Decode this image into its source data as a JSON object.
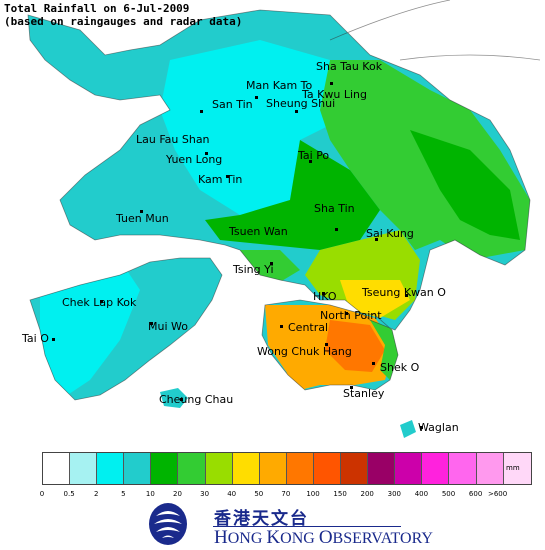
{
  "title": {
    "line1": "Total Rainfall on 6-Jul-2009",
    "line2": "(based on raingauges and radar data)"
  },
  "colors": {
    "sea": "#ffffff",
    "band_0_5_2": "#a6f2f2",
    "band_2_5": "#00f0f0",
    "band_5_10": "#22cccc",
    "band_10_20": "#00b400",
    "band_20_30": "#33cc33",
    "band_30_40": "#99dd00",
    "band_40_50": "#ffdd00",
    "band_50_70": "#ffaa00",
    "band_70_100": "#ff7700"
  },
  "places": [
    {
      "id": "sha-tau-kok",
      "label": "Sha Tau Kok"
    },
    {
      "id": "man-kam-to",
      "label": "Man Kam To"
    },
    {
      "id": "ta-kwu-ling",
      "label": "Ta Kwu Ling"
    },
    {
      "id": "san-tin",
      "label": "San Tin"
    },
    {
      "id": "sheung-shui",
      "label": "Sheung Shui"
    },
    {
      "id": "lau-fau-shan",
      "label": "Lau Fau Shan"
    },
    {
      "id": "yuen-long",
      "label": "Yuen Long"
    },
    {
      "id": "tai-po",
      "label": "Tai Po"
    },
    {
      "id": "kam-tin",
      "label": "Kam Tin"
    },
    {
      "id": "tuen-mun",
      "label": "Tuen Mun"
    },
    {
      "id": "sha-tin",
      "label": "Sha Tin"
    },
    {
      "id": "tsuen-wan",
      "label": "Tsuen Wan"
    },
    {
      "id": "sai-kung",
      "label": "Sai Kung"
    },
    {
      "id": "tsing-yi",
      "label": "Tsing Yi"
    },
    {
      "id": "chek-lap-kok",
      "label": "Chek Lap Kok"
    },
    {
      "id": "hko",
      "label": "HKO"
    },
    {
      "id": "tseung-kwan-o",
      "label": "Tseung Kwan O"
    },
    {
      "id": "north-point",
      "label": "North Point"
    },
    {
      "id": "mui-wo",
      "label": "Mui Wo"
    },
    {
      "id": "central",
      "label": "Central"
    },
    {
      "id": "tai-o",
      "label": "Tai O"
    },
    {
      "id": "wong-chuk-hang",
      "label": "Wong Chuk Hang"
    },
    {
      "id": "shek-o",
      "label": "Shek O"
    },
    {
      "id": "stanley",
      "label": "Stanley"
    },
    {
      "id": "cheung-chau",
      "label": "Cheung Chau"
    },
    {
      "id": "waglan",
      "label": "Waglan"
    }
  ],
  "legend": {
    "unit": "mm",
    "colors": [
      "#ffffff",
      "#a6f2f2",
      "#00f0f0",
      "#22cccc",
      "#00b400",
      "#33cc33",
      "#99dd00",
      "#ffdd00",
      "#ffaa00",
      "#ff7700",
      "#ff5500",
      "#cc3300",
      "#990066",
      "#cc00aa",
      "#ff22dd",
      "#ff66ee",
      "#ff99ee",
      "#ffd8f8"
    ],
    "ticks": [
      "0",
      "0.5",
      "2",
      "5",
      "10",
      "20",
      "30",
      "40",
      "50",
      "70",
      "100",
      "150",
      "200",
      "300",
      "400",
      "500",
      "600",
      ">600"
    ]
  },
  "logo": {
    "chinese": "香港天文台",
    "english_h": "H",
    "english_ong": "ONG ",
    "english_k": "K",
    "english_ong2": "ONG ",
    "english_o": "O",
    "english_rest": "BSERVATORY"
  }
}
